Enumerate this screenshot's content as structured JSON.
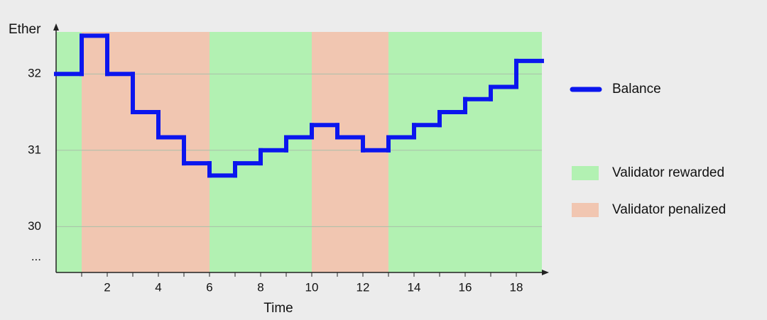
{
  "chart_data": {
    "type": "step",
    "x_label": "Time",
    "y_label": "Ether",
    "x": [
      0,
      1,
      2,
      3,
      4,
      5,
      6,
      7,
      8,
      9,
      10,
      11,
      12,
      13,
      14,
      15,
      16,
      17,
      18
    ],
    "series": [
      {
        "name": "Balance",
        "color": "#0b16ee",
        "values": [
          32,
          32.5,
          32,
          31.5,
          31.17,
          30.83,
          30.67,
          30.83,
          31,
          31.17,
          31.33,
          31.17,
          31,
          31.17,
          31.33,
          31.5,
          31.67,
          31.83,
          32.17
        ]
      }
    ],
    "bands": [
      {
        "name": "Validator rewarded",
        "color": "#b2f1b2",
        "spans": [
          [
            0,
            1
          ],
          [
            6,
            10
          ],
          [
            13,
            19
          ]
        ]
      },
      {
        "name": "Validator penalized",
        "color": "#f1c6b1",
        "spans": [
          [
            1,
            6
          ],
          [
            10,
            13
          ]
        ]
      }
    ],
    "xlim": [
      0,
      19
    ],
    "ylim": [
      29.4,
      32.55
    ],
    "xticks": [
      2,
      4,
      6,
      8,
      10,
      12,
      14,
      16,
      18
    ],
    "xminor_ticks": [
      1,
      3,
      5,
      7,
      9,
      11,
      13,
      15,
      17
    ],
    "yticks": [
      32,
      31,
      30,
      {
        "value": 29.6,
        "label": "..."
      }
    ],
    "grid": true
  }
}
